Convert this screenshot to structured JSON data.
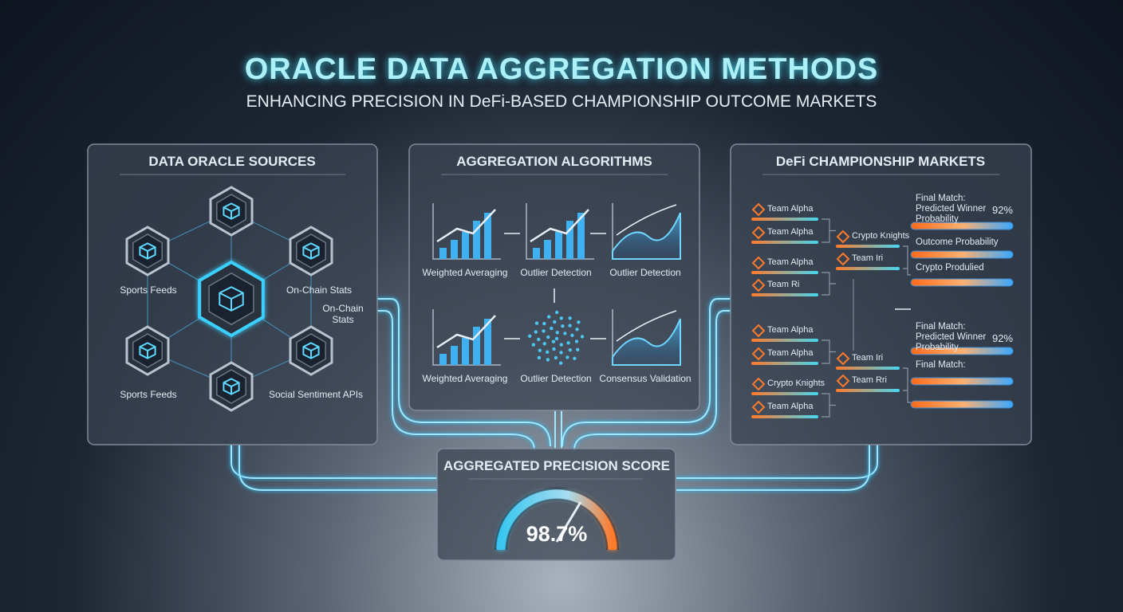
{
  "header": {
    "title": "ORACLE DATA AGGREGATION METHODS",
    "subtitle": "ENHANCING PRECISION IN DeFi-BASED CHAMPIONSHIP OUTCOME MARKETS"
  },
  "sources": {
    "title": "DATA ORACLE SOURCES",
    "labels": [
      "Sports Feeds",
      "On-Chain Stats",
      "On-Chain Stats",
      "Sports Feeds",
      "Social Sentiment APIs"
    ]
  },
  "algorithms": {
    "title": "AGGREGATION ALGORITHMS",
    "steps": [
      "Weighted Averaging",
      "Outlier Detection",
      "Outlier Detection",
      "Weighted Averaging",
      "Outlier Detection",
      "Consensus Validation"
    ]
  },
  "markets": {
    "title": "DeFi CHAMPIONSHIP MARKETS",
    "bracket_a": {
      "round1": [
        "Team Alpha",
        "Team Alpha",
        "Team Alpha",
        "Team Ri"
      ],
      "round2": [
        "Crypto Knights",
        "Team Iri"
      ]
    },
    "bracket_b": {
      "round1": [
        "Team Alpha",
        "Team Alpha",
        "Crypto Knights",
        "Team Alpha"
      ],
      "round2": [
        "Team Iri",
        "Team Rri"
      ]
    },
    "predictions": [
      {
        "title": "Final Match: Predicted Winner Probability",
        "value": "92%",
        "rows": [
          "Outcome Probability",
          "Crypto Produlied"
        ]
      },
      {
        "title": "Final Match: Predicted Winner Probability",
        "value": "92%",
        "rows": [
          "Final Match:"
        ]
      }
    ]
  },
  "score": {
    "title": "AGGREGATED PRECISION SCORE",
    "value": "98.7%"
  }
}
